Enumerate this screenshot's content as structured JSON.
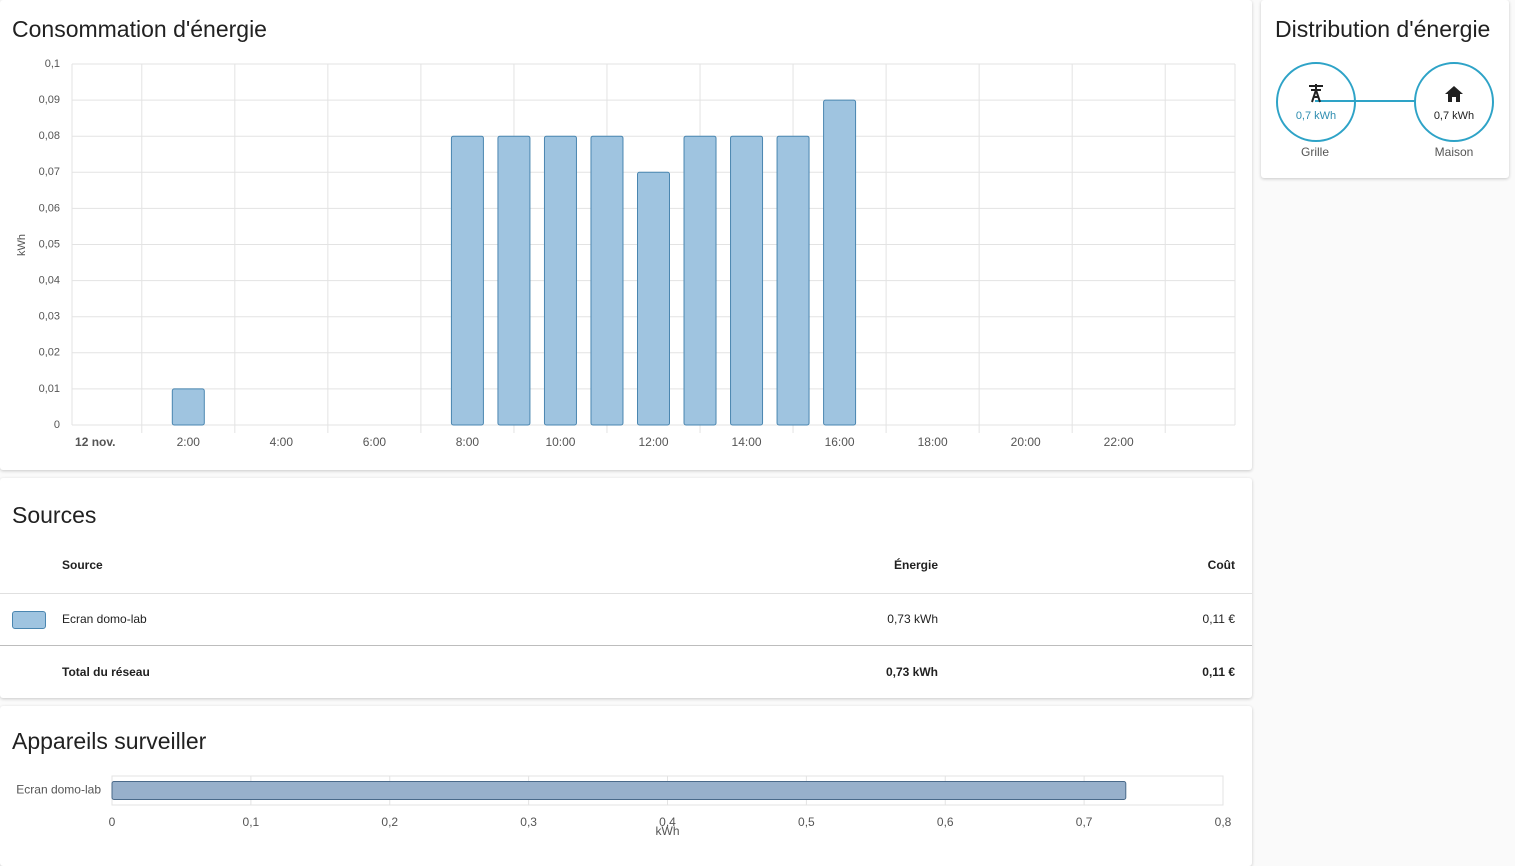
{
  "consumption": {
    "type": "bar",
    "title": "Consommation d'énergie",
    "ylabel": "kWh",
    "categories": [
      "12 nov.",
      null,
      "2:00",
      null,
      "4:00",
      null,
      "6:00",
      null,
      "8:00",
      null,
      "10:00",
      null,
      "12:00",
      null,
      "14:00",
      null,
      "16:00",
      null,
      "18:00",
      null,
      "20:00",
      null,
      "22:00",
      null
    ],
    "values": [
      0,
      0,
      0.01,
      0,
      0,
      0,
      0,
      0,
      0.08,
      0.08,
      0.08,
      0.08,
      0.07,
      0.08,
      0.08,
      0.08,
      0.09,
      0,
      0,
      0,
      0,
      0,
      0,
      0
    ],
    "color": "#9fc4e0",
    "ylim": [
      0,
      0.1
    ],
    "yticks": [
      0,
      {
        "value": 0.01,
        "label": "0,01"
      },
      {
        "value": 0.02,
        "label": "0,02"
      },
      {
        "value": 0.03,
        "label": "0,03"
      },
      {
        "value": 0.04,
        "label": "0,04"
      },
      {
        "value": 0.05,
        "label": "0,05"
      },
      {
        "value": 0.06,
        "label": "0,06"
      },
      {
        "value": 0.07,
        "label": "0,07"
      },
      {
        "value": 0.08,
        "label": "0,08"
      },
      {
        "value": 0.09,
        "label": "0,09"
      },
      {
        "value": 0.1,
        "label": "0,1"
      }
    ],
    "grid": true
  },
  "distribution": {
    "title": "Distribution d'énergie",
    "grid": {
      "value": "0,7 kWh",
      "label": "Grille"
    },
    "home": {
      "value": "0,7 kWh",
      "label": "Maison"
    }
  },
  "sources": {
    "title": "Sources",
    "headers": [
      "Source",
      "Énergie",
      "Coût"
    ],
    "rows": [
      [
        "Ecran domo-lab",
        "0,73 kWh",
        "0,11 €"
      ]
    ],
    "total": [
      "Total du réseau",
      "0,73 kWh",
      "0,11 €"
    ]
  },
  "devices": {
    "type": "hbar",
    "title": "Appareils surveiller",
    "xlabel": "kWh",
    "categories": [
      "Ecran domo-lab"
    ],
    "values": [
      0.73
    ],
    "color": "#97b0cb",
    "xlim": [
      0,
      0.8
    ],
    "xticks": [
      0,
      {
        "value": 0.1,
        "label": "0,1"
      },
      {
        "value": 0.2,
        "label": "0,2"
      },
      {
        "value": 0.3,
        "label": "0,3"
      },
      {
        "value": 0.4,
        "label": "0,4"
      },
      {
        "value": 0.5,
        "label": "0,5"
      },
      {
        "value": 0.6,
        "label": "0,6"
      },
      {
        "value": 0.7,
        "label": "0,7"
      },
      {
        "value": 0.8,
        "label": "0,8"
      }
    ],
    "grid": true
  }
}
